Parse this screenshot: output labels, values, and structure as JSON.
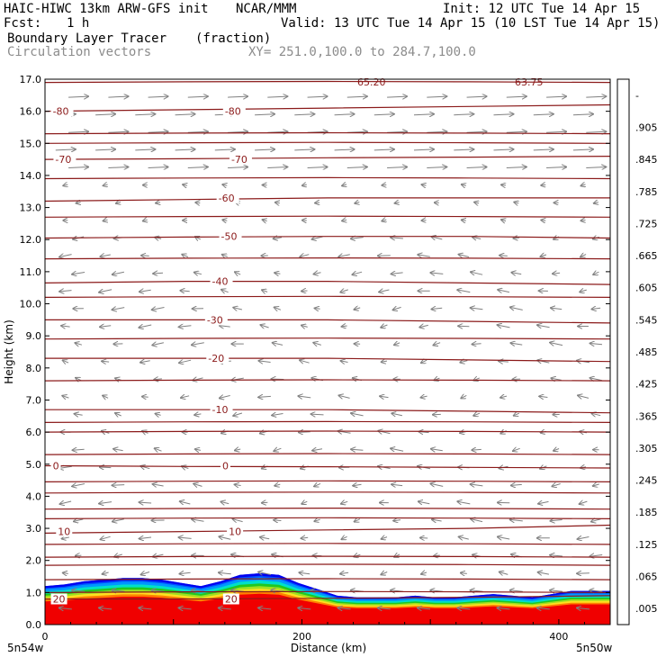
{
  "header": {
    "model": "HAIC-HIWC 13km ARW-GFS init",
    "org": "NCAR/MMM",
    "init": "Init: 12 UTC Tue 14 Apr 15",
    "fcst_label": "Fcst:",
    "fcst_value": "1 h",
    "valid": "Valid: 13 UTC Tue 14 Apr 15 (10 LST Tue 14 Apr 15)",
    "field1": "Boundary Layer Tracer",
    "field1_units": "(fraction)",
    "field2": "Circulation vectors",
    "xsec": "XY= 251.0,100.0 to 284.7,100.0"
  },
  "chart_data": {
    "type": "heatmap",
    "ylabel": "Height (km)",
    "xlabel": "Distance (km)",
    "ylim": [
      0,
      17
    ],
    "xlim": [
      0,
      440
    ],
    "y_ticks": [
      "0.0",
      "1.0",
      "2.0",
      "3.0",
      "4.0",
      "5.0",
      "6.0",
      "7.0",
      "8.0",
      "9.0",
      "10.0",
      "11.0",
      "12.0",
      "13.0",
      "14.0",
      "15.0",
      "16.0",
      "17.0"
    ],
    "x_ticks": [
      {
        "value": 0,
        "label": "0"
      },
      {
        "value": 200,
        "label": "200"
      },
      {
        "value": 400,
        "label": "400"
      }
    ],
    "x_endpoints": {
      "left": "5n54w",
      "right": "5n50w"
    },
    "colorbar_labels": [
      ".005",
      ".065",
      ".125",
      ".185",
      ".245",
      ".305",
      ".365",
      ".425",
      ".485",
      ".545",
      ".605",
      ".665",
      ".725",
      ".785",
      ".845",
      ".905",
      "-"
    ],
    "colorbar_colors": [
      "#ffffff",
      "#0000f0",
      "#0050ff",
      "#0096ff",
      "#00c8ff",
      "#00e0c8",
      "#00d080",
      "#20c820",
      "#60d820",
      "#a0e020",
      "#d8e830",
      "#ffe020",
      "#ffb000",
      "#ff8000",
      "#ff5000",
      "#ff2000",
      "#f00000"
    ],
    "temperature_contours": [
      {
        "label": "-80",
        "labels_at": [
          [
            6,
            16.0
          ],
          [
            140,
            16.0
          ]
        ],
        "y": [
          16.0,
          16.05,
          16.1,
          16.15,
          16.2
        ]
      },
      {
        "label": "-70",
        "labels_at": [
          [
            8,
            14.5
          ],
          [
            145,
            14.5
          ]
        ],
        "y": [
          14.5,
          14.52,
          14.55,
          14.57,
          14.6
        ]
      },
      {
        "label": "-60",
        "labels_at": [
          [
            135,
            13.3
          ]
        ],
        "y": [
          13.2,
          13.25,
          13.3,
          13.3,
          13.3
        ]
      },
      {
        "label": "-50",
        "labels_at": [
          [
            137,
            12.1
          ]
        ],
        "y": [
          12.05,
          12.08,
          12.1,
          12.1,
          12.05
        ]
      },
      {
        "label": "-40",
        "labels_at": [
          [
            130,
            10.7
          ]
        ],
        "y": [
          10.65,
          10.7,
          10.7,
          10.65,
          10.6
        ]
      },
      {
        "label": "-30",
        "labels_at": [
          [
            126,
            9.5
          ]
        ],
        "y": [
          9.5,
          9.5,
          9.5,
          9.45,
          9.4
        ]
      },
      {
        "label": "-20",
        "labels_at": [
          [
            127,
            8.3
          ]
        ],
        "y": [
          8.3,
          8.3,
          8.3,
          8.25,
          8.2
        ]
      },
      {
        "label": "-10",
        "labels_at": [
          [
            130,
            6.7
          ]
        ],
        "y": [
          6.7,
          6.7,
          6.7,
          6.65,
          6.6
        ]
      },
      {
        "label": "0",
        "labels_at": [
          [
            6,
            4.95
          ],
          [
            138,
            4.95
          ]
        ],
        "y": [
          4.95,
          4.93,
          4.92,
          4.9,
          4.88
        ]
      },
      {
        "label": "10",
        "labels_at": [
          [
            10,
            2.9
          ],
          [
            143,
            2.9
          ]
        ],
        "y": [
          2.85,
          2.9,
          2.95,
          3.0,
          3.1
        ]
      },
      {
        "label": "20",
        "labels_at": [
          [
            6,
            0.8
          ],
          [
            140,
            0.8
          ]
        ],
        "y": [
          0.8,
          0.8,
          0.82,
          0.85,
          0.9
        ]
      }
    ],
    "extra_isotherms_y": [
      16.9,
      15.3,
      15.0,
      13.9,
      12.7,
      11.4,
      10.2,
      8.9,
      7.6,
      6.3,
      6.0,
      5.3,
      4.45,
      4.1,
      3.6,
      3.3,
      2.5,
      2.1,
      1.85,
      1.4,
      1.0
    ],
    "top_labels": [
      "65.20",
      "63.75"
    ],
    "tracer_top_km": [
      1.2,
      1.25,
      1.35,
      1.4,
      1.45,
      1.45,
      1.4,
      1.3,
      1.2,
      1.35,
      1.55,
      1.6,
      1.55,
      1.3,
      1.1,
      0.9,
      0.85,
      0.85,
      0.85,
      0.9,
      0.85,
      0.85,
      0.9,
      0.95,
      0.9,
      0.85,
      0.95,
      1.05,
      1.05,
      1.05
    ]
  }
}
